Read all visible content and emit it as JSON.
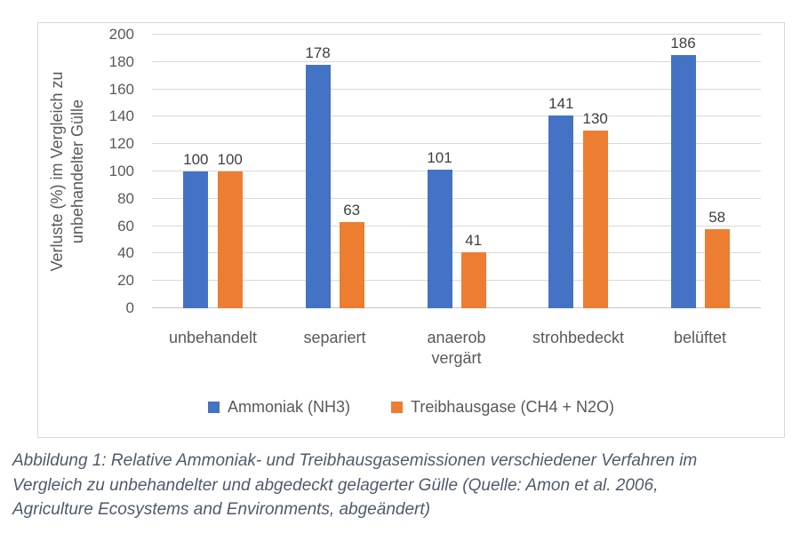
{
  "chart_data": {
    "type": "bar",
    "title": "",
    "categories": [
      "unbehandelt",
      "separiert",
      "anaerob vergärt",
      "strohbedeckt",
      "belüftet"
    ],
    "series": [
      {
        "name": "Ammoniak (NH3)",
        "color": "#4472C4",
        "values": [
          100,
          178,
          101,
          141,
          186
        ]
      },
      {
        "name": "Treibhausgase (CH4 + N2O)",
        "color": "#ED7D31",
        "values": [
          100,
          63,
          41,
          130,
          58
        ]
      }
    ],
    "xlabel": "",
    "ylabel": "Verluste (%) im Vergleich zu\nunbehandelter Gülle",
    "ylim": [
      0,
      200
    ],
    "ytick_step": 20,
    "grid": true,
    "legend_position": "bottom",
    "data_labels": true
  },
  "caption": {
    "text": "Abbildung 1: Relative Ammoniak- und Treibhausgasemissionen verschiedener Verfahren im\nVergleich zu unbehandelter und abgedeckt gelagerter Gülle (Quelle: Amon et al. 2006,\nAgriculture Ecosystems and Environments, abgeändert)"
  },
  "colors": {
    "grid": "#D9D9D9",
    "axis_text": "#595959",
    "value_label": "#3F3F3F",
    "caption_text": "#4F5B6B",
    "frame_border": "#D9D9D9"
  }
}
